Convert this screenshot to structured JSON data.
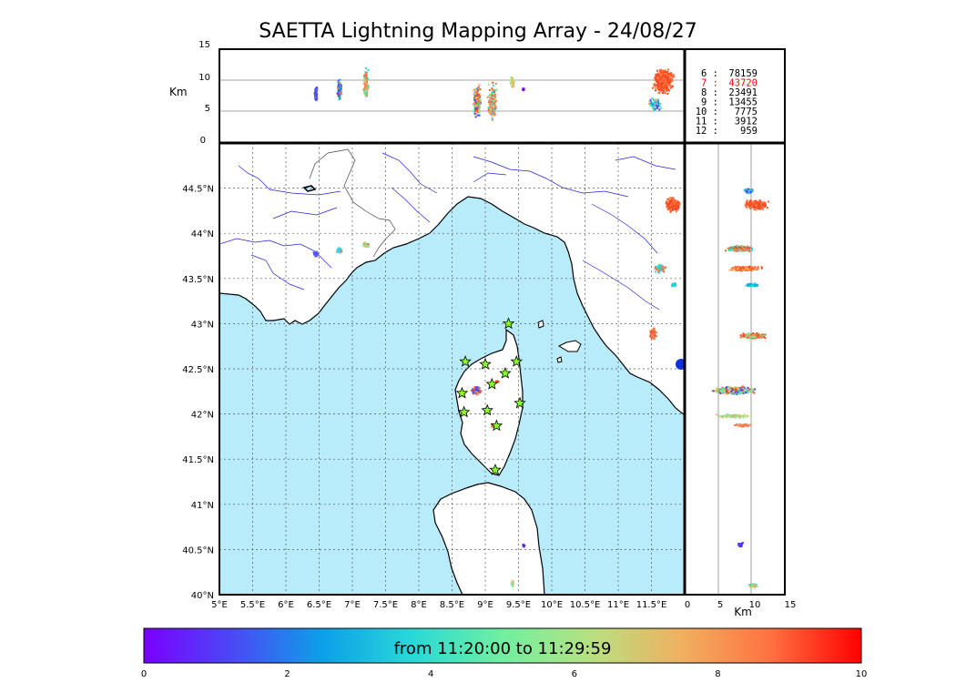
{
  "title": "SAETTA Lightning Mapping Array - 24/08/27",
  "altitude_panel": {
    "ylabel": "Km",
    "yticks": [
      "15",
      "10",
      "5",
      "0"
    ]
  },
  "map": {
    "lat_ticks": [
      "44.5°N",
      "44°N",
      "43.5°N",
      "43°N",
      "42.5°N",
      "42°N",
      "41.5°N",
      "41°N",
      "40.5°N",
      "40°N"
    ],
    "lon_ticks": [
      "5°E",
      "5.5°E",
      "6°E",
      "6.5°E",
      "7°E",
      "7.5°E",
      "8°E",
      "8.5°E",
      "9°E",
      "9.5°E",
      "10°E",
      "10.5°E",
      "11°E",
      "11.5°E"
    ],
    "sea_color": "#b8ecfb",
    "land_color": "#ffffff",
    "river_color": "#2222dd",
    "station_marker": "star",
    "station_color": "#88ff22",
    "stations_lonlat": [
      [
        9.35,
        43.0
      ],
      [
        8.7,
        42.58
      ],
      [
        9.0,
        42.55
      ],
      [
        9.47,
        42.58
      ],
      [
        9.3,
        42.45
      ],
      [
        9.1,
        42.33
      ],
      [
        8.65,
        42.23
      ],
      [
        9.52,
        42.12
      ],
      [
        8.68,
        42.02
      ],
      [
        9.03,
        42.04
      ],
      [
        9.17,
        41.87
      ],
      [
        9.15,
        41.38
      ]
    ]
  },
  "side_panel": {
    "xlabel": "Km",
    "xticks": [
      "0",
      "5",
      "10",
      "15"
    ]
  },
  "counts_table": [
    {
      "label": "6 :",
      "value": "78159",
      "highlight": false
    },
    {
      "label": "7 :",
      "value": "43720",
      "highlight": true
    },
    {
      "label": "8 :",
      "value": "23491",
      "highlight": false
    },
    {
      "label": "9 :",
      "value": "13455",
      "highlight": false
    },
    {
      "label": "10 :",
      "value": "7775",
      "highlight": false
    },
    {
      "label": "11 :",
      "value": "3912",
      "highlight": false
    },
    {
      "label": "12 :",
      "value": "959",
      "highlight": false
    }
  ],
  "colorbar": {
    "label": "from 11:20:00 to 11:29:59",
    "ticks": [
      "0",
      "2",
      "4",
      "6",
      "8",
      "10"
    ],
    "colors": [
      "#7a00ff",
      "#4a4af5",
      "#0ca0e8",
      "#2ad8d8",
      "#70f0a0",
      "#b8e080",
      "#f0b060",
      "#ff7040",
      "#ff0000"
    ]
  },
  "highlight_color": "#ff0000"
}
